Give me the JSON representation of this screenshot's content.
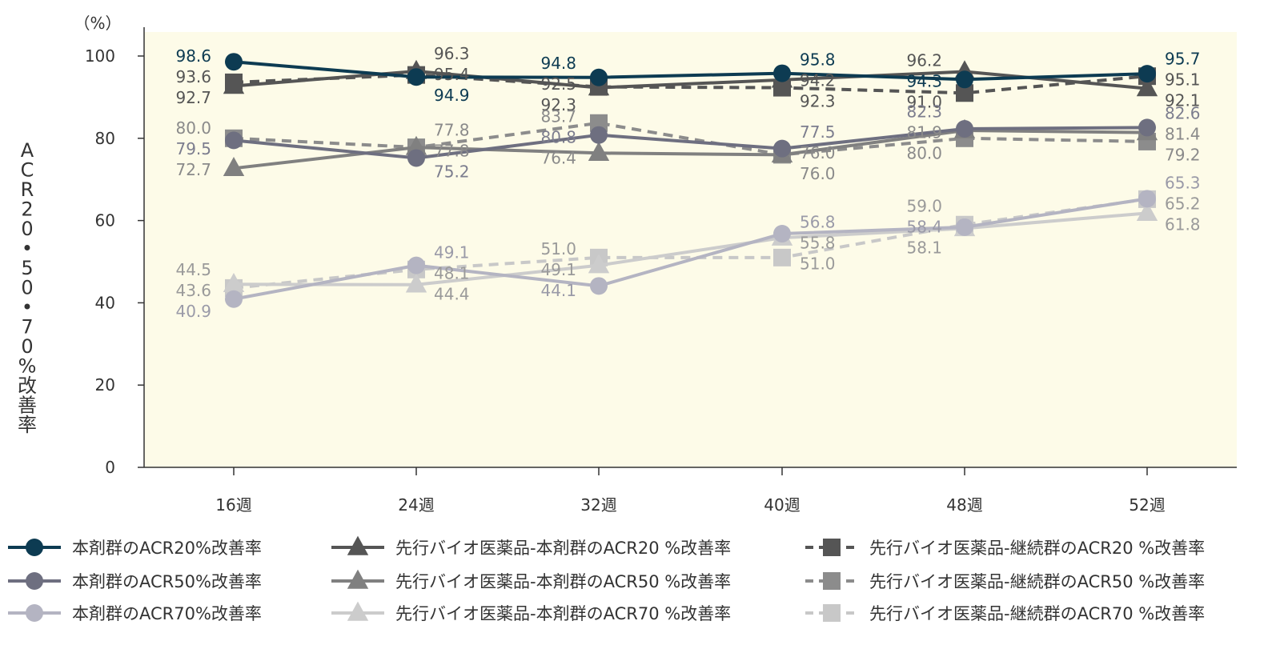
{
  "chart_data": {
    "type": "line",
    "categories": [
      "16週",
      "24週",
      "32週",
      "40週",
      "48週",
      "52週"
    ],
    "unit_label": "（%）",
    "ylabel": "ACR20・50・70%改善率",
    "ylim": [
      0,
      100
    ],
    "yticks": [
      0,
      20,
      40,
      60,
      80,
      100
    ],
    "plot_background": "#fdfbe8",
    "series": [
      {
        "name": "本剤群のACR20%改善率",
        "values": [
          98.6,
          94.9,
          94.8,
          95.8,
          94.3,
          95.7
        ],
        "color": "#0d3b52",
        "label_color": "#0d3b52",
        "marker": "circle",
        "dash": false
      },
      {
        "name": "先行バイオ医薬品-本剤群のACR20 %改善率",
        "values": [
          92.7,
          96.3,
          92.3,
          94.2,
          96.2,
          92.1
        ],
        "color": "#555555",
        "label_color": "#555555",
        "marker": "triangle",
        "dash": false
      },
      {
        "name": "先行バイオ医薬品-継続群のACR20 %改善率",
        "values": [
          93.6,
          95.4,
          92.5,
          92.3,
          91.0,
          95.1
        ],
        "color": "#555555",
        "label_color": "#555555",
        "marker": "square",
        "dash": true
      },
      {
        "name": "本剤群のACR50%改善率",
        "values": [
          79.5,
          75.2,
          80.8,
          77.5,
          82.3,
          82.6
        ],
        "color": "#6e6f80",
        "label_color": "#7c7d8e",
        "marker": "circle",
        "dash": false
      },
      {
        "name": "先行バイオ医薬品-本剤群のACR50 %改善率",
        "values": [
          72.7,
          77.8,
          76.4,
          76.0,
          81.9,
          81.4
        ],
        "color": "#808080",
        "label_color": "#8a8a8a",
        "marker": "triangle",
        "dash": false
      },
      {
        "name": "先行バイオ医薬品-継続群のACR50 %改善率",
        "values": [
          80.0,
          77.8,
          83.7,
          76.0,
          80.0,
          79.2
        ],
        "color": "#8c8c8c",
        "label_color": "#8a8a8a",
        "marker": "square",
        "dash": true
      },
      {
        "name": "本剤群のACR70%改善率",
        "values": [
          40.9,
          49.1,
          44.1,
          56.8,
          58.4,
          65.3
        ],
        "color": "#b4b4c2",
        "label_color": "#9a9aa8",
        "marker": "circle",
        "dash": false
      },
      {
        "name": "先行バイオ医薬品-本剤群のACR70 %改善率",
        "values": [
          44.5,
          44.4,
          49.1,
          55.8,
          58.1,
          61.8
        ],
        "color": "#cccccc",
        "label_color": "#9a9a9a",
        "marker": "triangle",
        "dash": false
      },
      {
        "name": "先行バイオ医薬品-継続群のACR70 %改善率",
        "values": [
          43.6,
          48.1,
          51.0,
          51.0,
          59.0,
          65.2
        ],
        "color": "#c8c8c8",
        "label_color": "#9a9a9a",
        "marker": "square",
        "dash": true
      }
    ],
    "data_labels": [
      {
        "series": 0,
        "i": 0,
        "text": "98.6"
      },
      {
        "series": 2,
        "i": 0,
        "text": "93.6"
      },
      {
        "series": 1,
        "i": 0,
        "text": "92.7"
      },
      {
        "series": 5,
        "i": 0,
        "text": "80.0"
      },
      {
        "series": 3,
        "i": 0,
        "text": "79.5"
      },
      {
        "series": 4,
        "i": 0,
        "text": "72.7"
      },
      {
        "series": 7,
        "i": 0,
        "text": "44.5"
      },
      {
        "series": 8,
        "i": 0,
        "text": "43.6"
      },
      {
        "series": 6,
        "i": 0,
        "text": "40.9"
      },
      {
        "series": 1,
        "i": 1,
        "text": "96.3"
      },
      {
        "series": 2,
        "i": 1,
        "text": "95.4"
      },
      {
        "series": 0,
        "i": 1,
        "text": "94.9"
      },
      {
        "series": 4,
        "i": 1,
        "text": "77.8"
      },
      {
        "series": 5,
        "i": 1,
        "text": "77.8"
      },
      {
        "series": 3,
        "i": 1,
        "text": "75.2"
      },
      {
        "series": 6,
        "i": 1,
        "text": "49.1"
      },
      {
        "series": 8,
        "i": 1,
        "text": "48.1"
      },
      {
        "series": 7,
        "i": 1,
        "text": "44.4"
      },
      {
        "series": 0,
        "i": 2,
        "text": "94.8"
      },
      {
        "series": 2,
        "i": 2,
        "text": "92.5"
      },
      {
        "series": 1,
        "i": 2,
        "text": "92.3"
      },
      {
        "series": 5,
        "i": 2,
        "text": "83.7"
      },
      {
        "series": 3,
        "i": 2,
        "text": "80.8"
      },
      {
        "series": 4,
        "i": 2,
        "text": "76.4"
      },
      {
        "series": 8,
        "i": 2,
        "text": "51.0"
      },
      {
        "series": 7,
        "i": 2,
        "text": "49.1"
      },
      {
        "series": 6,
        "i": 2,
        "text": "44.1"
      },
      {
        "series": 0,
        "i": 3,
        "text": "95.8"
      },
      {
        "series": 1,
        "i": 3,
        "text": "94.2"
      },
      {
        "series": 2,
        "i": 3,
        "text": "92.3"
      },
      {
        "series": 3,
        "i": 3,
        "text": "77.5"
      },
      {
        "series": 4,
        "i": 3,
        "text": "76.0"
      },
      {
        "series": 5,
        "i": 3,
        "text": "76.0"
      },
      {
        "series": 6,
        "i": 3,
        "text": "56.8"
      },
      {
        "series": 7,
        "i": 3,
        "text": "55.8"
      },
      {
        "series": 8,
        "i": 3,
        "text": "51.0"
      },
      {
        "series": 1,
        "i": 4,
        "text": "96.2"
      },
      {
        "series": 0,
        "i": 4,
        "text": "94.3"
      },
      {
        "series": 2,
        "i": 4,
        "text": "91.0"
      },
      {
        "series": 3,
        "i": 4,
        "text": "82.3"
      },
      {
        "series": 4,
        "i": 4,
        "text": "81.9"
      },
      {
        "series": 5,
        "i": 4,
        "text": "80.0"
      },
      {
        "series": 8,
        "i": 4,
        "text": "59.0"
      },
      {
        "series": 6,
        "i": 4,
        "text": "58.4"
      },
      {
        "series": 7,
        "i": 4,
        "text": "58.1"
      },
      {
        "series": 0,
        "i": 5,
        "text": "95.7"
      },
      {
        "series": 2,
        "i": 5,
        "text": "95.1"
      },
      {
        "series": 1,
        "i": 5,
        "text": "92.1"
      },
      {
        "series": 3,
        "i": 5,
        "text": "82.6"
      },
      {
        "series": 4,
        "i": 5,
        "text": "81.4"
      },
      {
        "series": 5,
        "i": 5,
        "text": "79.2"
      },
      {
        "series": 6,
        "i": 5,
        "text": "65.3"
      },
      {
        "series": 8,
        "i": 5,
        "text": "65.2"
      },
      {
        "series": 7,
        "i": 5,
        "text": "61.8"
      }
    ],
    "legend_position": "bottom"
  }
}
